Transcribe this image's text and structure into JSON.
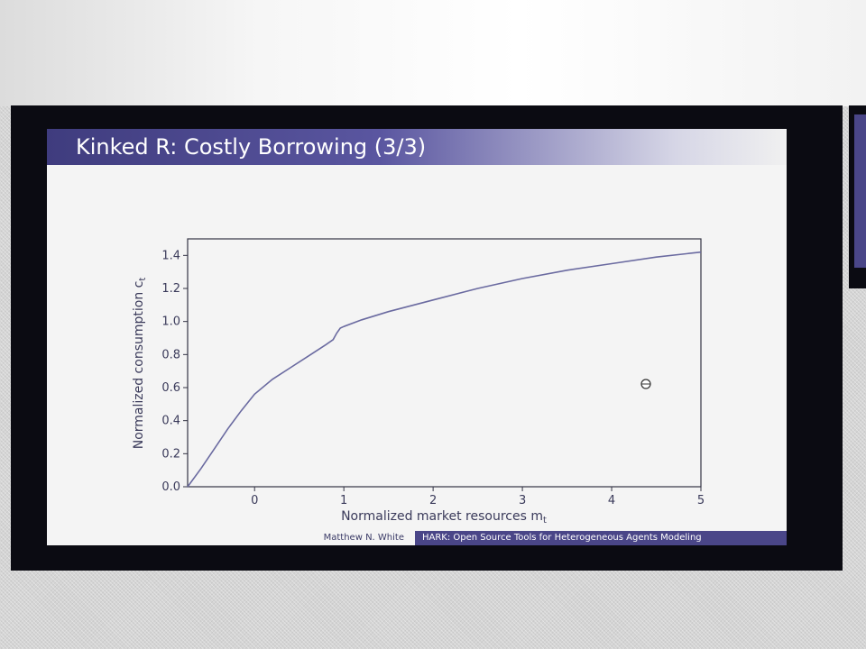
{
  "slide": {
    "title": "Kinked R: Costly Borrowing (3/3)",
    "footer_author": "Matthew N. White",
    "footer_talk": "HARK: Open Source Tools for Heterogeneous Agents Modeling"
  },
  "colors": {
    "theme_purple": "#4a4688",
    "curve": "#6a6aa0",
    "axis": "#333344"
  },
  "chart_data": {
    "type": "line",
    "xlabel": "Normalized market resources m",
    "xlabel_subscript": "t",
    "ylabel": "Normalized consumption c",
    "ylabel_subscript": "t",
    "xlim": [
      -0.75,
      5.0
    ],
    "ylim": [
      0.0,
      1.5
    ],
    "xticks": [
      0,
      1,
      2,
      3,
      4,
      5
    ],
    "yticks": [
      0.0,
      0.2,
      0.4,
      0.6,
      0.8,
      1.0,
      1.2,
      1.4
    ],
    "ytick_labels": [
      "0.0",
      "0.2",
      "0.4",
      "0.6",
      "0.8",
      "1.0",
      "1.2",
      "1.4"
    ],
    "grid": false,
    "series": [
      {
        "x": [
          -0.75,
          -0.6,
          -0.45,
          -0.3,
          -0.15,
          0.0,
          0.2,
          0.4,
          0.6,
          0.8,
          0.88,
          0.92,
          0.96,
          1.0,
          1.2,
          1.5,
          2.0,
          2.5,
          3.0,
          3.5,
          4.0,
          4.5,
          5.0
        ],
        "y": [
          0.0,
          0.11,
          0.23,
          0.35,
          0.46,
          0.56,
          0.65,
          0.72,
          0.79,
          0.86,
          0.89,
          0.93,
          0.96,
          0.97,
          1.01,
          1.06,
          1.13,
          1.2,
          1.26,
          1.31,
          1.35,
          1.39,
          1.42
        ]
      }
    ]
  }
}
